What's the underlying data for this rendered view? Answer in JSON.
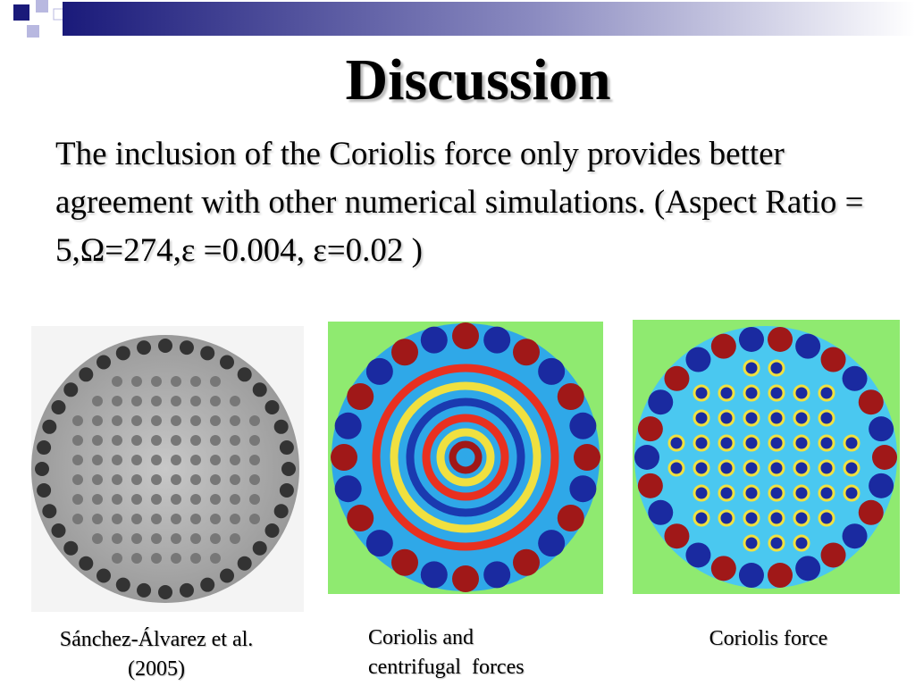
{
  "header": {
    "title": "Discussion"
  },
  "body": {
    "text": "The inclusion of the Coriolis force only provides better agreement with other numerical simulations. (Aspect Ratio = 5,Ω=274,ε =0.004, ε=0.02 )"
  },
  "figures": [
    {
      "caption": "Sánchez-Álvarez et al.(2005)"
    },
    {
      "caption": "Coriolis and centrifugal  forces"
    },
    {
      "caption": "Coriolis force"
    }
  ]
}
